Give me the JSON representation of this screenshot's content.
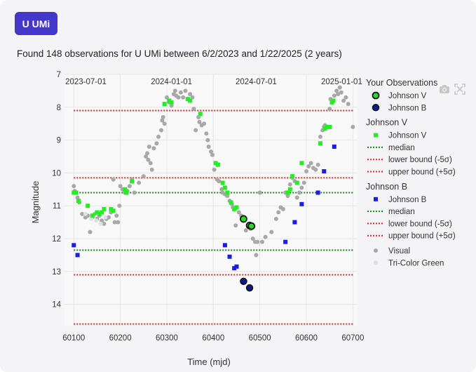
{
  "button": {
    "label": "U UMi"
  },
  "summary": "Found 148 observations for U UMi between 6/2/2023 and 1/22/2025 (2 years)",
  "toolbar": {
    "icons": [
      "camera-icon",
      "autoscale-icon"
    ]
  },
  "chart_data": {
    "type": "scatter",
    "xlabel": "Time (mjd)",
    "ylabel": "Magnitude",
    "xlim": [
      60080,
      60710
    ],
    "ylim": [
      14.65,
      7.0
    ],
    "y_reversed": true,
    "x_ticks": [
      60100,
      60200,
      60300,
      60400,
      60500,
      60600,
      60700
    ],
    "y_ticks": [
      7,
      8,
      9,
      10,
      11,
      12,
      13,
      14
    ],
    "top_date_ticks": [
      {
        "label": "2023-07-01",
        "mjd": 60126
      },
      {
        "label": "2024-01-01",
        "mjd": 60310
      },
      {
        "label": "2024-07-01",
        "mjd": 60492
      },
      {
        "label": "2025-01-01",
        "mjd": 60676
      }
    ],
    "grid": true,
    "legend_position": "right",
    "colors": {
      "visual": "#a8a8a8",
      "tricolor_green": "#e0e0e0",
      "johnson_v": "#22ee22",
      "johnson_b": "#1a1aee",
      "median": "#118811",
      "bound": "#ee2222",
      "user_v": "#22dd22",
      "user_b": "#0a1a8a"
    },
    "lines": {
      "johnson_v": {
        "median": 10.6,
        "lower": 8.1,
        "upper": 10.15
      },
      "johnson_b": {
        "median": 12.35,
        "lower": 13.1,
        "upper": 14.6
      }
    },
    "legend": {
      "groups": [
        {
          "title": "Your Observations",
          "items": [
            {
              "label": "Johnson V",
              "kind": "user-v"
            },
            {
              "label": "Johnson B",
              "kind": "user-b"
            }
          ]
        },
        {
          "title": "Johnson V",
          "items": [
            {
              "label": "Johnson V",
              "kind": "square-v"
            },
            {
              "label": "median",
              "kind": "median"
            },
            {
              "label": "lower bound (-5σ)",
              "kind": "bound"
            },
            {
              "label": "upper bound (+5σ)",
              "kind": "bound"
            }
          ]
        },
        {
          "title": "Johnson B",
          "items": [
            {
              "label": "Johnson B",
              "kind": "square-b"
            },
            {
              "label": "median",
              "kind": "median"
            },
            {
              "label": "lower bound (-5σ)",
              "kind": "bound"
            },
            {
              "label": "upper bound (+5σ)",
              "kind": "bound"
            }
          ]
        },
        {
          "title": "",
          "items": [
            {
              "label": "Visual",
              "kind": "visual"
            },
            {
              "label": "Tri-Color Green",
              "kind": "tricolor"
            }
          ]
        }
      ]
    },
    "series": [
      {
        "name": "Visual",
        "kind": "visual",
        "points": [
          [
            60100,
            10.4
          ],
          [
            60102,
            10.55
          ],
          [
            60108,
            10.75
          ],
          [
            60112,
            10.9
          ],
          [
            60118,
            11.25
          ],
          [
            60125,
            11.35
          ],
          [
            60130,
            11.3
          ],
          [
            60135,
            11.8
          ],
          [
            60140,
            11.35
          ],
          [
            60145,
            11.25
          ],
          [
            60150,
            11.4
          ],
          [
            60155,
            11.3
          ],
          [
            60160,
            11.45
          ],
          [
            60165,
            11.55
          ],
          [
            60170,
            11.4
          ],
          [
            60175,
            11.35
          ],
          [
            60180,
            11.2
          ],
          [
            60185,
            10.2
          ],
          [
            60188,
            11.5
          ],
          [
            60192,
            11.3
          ],
          [
            60195,
            11.5
          ],
          [
            60198,
            11.0
          ],
          [
            60200,
            10.4
          ],
          [
            60205,
            10.5
          ],
          [
            60210,
            10.6
          ],
          [
            60215,
            10.55
          ],
          [
            60220,
            10.4
          ],
          [
            60225,
            10.2
          ],
          [
            60230,
            10.6
          ],
          [
            60240,
            10.3
          ],
          [
            60250,
            10.1
          ],
          [
            60255,
            9.5
          ],
          [
            60258,
            9.4
          ],
          [
            60260,
            9.6
          ],
          [
            60262,
            9.2
          ],
          [
            60265,
            9.7
          ],
          [
            60268,
            9.9
          ],
          [
            60272,
            9.25
          ],
          [
            60278,
            9.1
          ],
          [
            60282,
            8.9
          ],
          [
            60288,
            8.7
          ],
          [
            60290,
            8.4
          ],
          [
            60292,
            8.3
          ],
          [
            60295,
            8.5
          ],
          [
            60300,
            7.7
          ],
          [
            60305,
            7.85
          ],
          [
            60310,
            7.95
          ],
          [
            60315,
            7.6
          ],
          [
            60318,
            7.5
          ],
          [
            60320,
            7.65
          ],
          [
            60325,
            7.7
          ],
          [
            60330,
            7.55
          ],
          [
            60335,
            7.7
          ],
          [
            60340,
            7.5
          ],
          [
            60345,
            7.75
          ],
          [
            60350,
            7.6
          ],
          [
            60355,
            7.7
          ],
          [
            60358,
            8.05
          ],
          [
            60362,
            8.7
          ],
          [
            60368,
            8.3
          ],
          [
            60370,
            8.45
          ],
          [
            60375,
            8.55
          ],
          [
            60380,
            8.5
          ],
          [
            60385,
            8.8
          ],
          [
            60388,
            9.0
          ],
          [
            60390,
            9.2
          ],
          [
            60395,
            9.35
          ],
          [
            60398,
            9.45
          ],
          [
            60402,
            9.9
          ],
          [
            60408,
            10.2
          ],
          [
            60412,
            10.25
          ],
          [
            60418,
            10.5
          ],
          [
            60420,
            10.6
          ],
          [
            60425,
            10.65
          ],
          [
            60430,
            10.7
          ],
          [
            60435,
            10.85
          ],
          [
            60440,
            10.95
          ],
          [
            60442,
            11.05
          ],
          [
            60448,
            11.6
          ],
          [
            60455,
            11.2
          ],
          [
            60460,
            11.3
          ],
          [
            60465,
            11.45
          ],
          [
            60470,
            11.75
          ],
          [
            60475,
            11.6
          ],
          [
            60480,
            11.7
          ],
          [
            60485,
            12.0
          ],
          [
            60490,
            12.1
          ],
          [
            60492,
            12.5
          ],
          [
            60495,
            12.1
          ],
          [
            60500,
            10.6
          ],
          [
            60505,
            12.1
          ],
          [
            60512,
            11.95
          ],
          [
            60525,
            11.8
          ],
          [
            60535,
            11.4
          ],
          [
            60540,
            11.2
          ],
          [
            60545,
            11.05
          ],
          [
            60550,
            11.1
          ],
          [
            60555,
            10.6
          ],
          [
            60560,
            10.7
          ],
          [
            60565,
            10.35
          ],
          [
            60570,
            10.15
          ],
          [
            60575,
            10.25
          ],
          [
            60580,
            10.75
          ],
          [
            60585,
            10.6
          ],
          [
            60590,
            10.45
          ],
          [
            60595,
            10.3
          ],
          [
            60600,
            9.95
          ],
          [
            60605,
            9.8
          ],
          [
            60610,
            9.7
          ],
          [
            60615,
            9.85
          ],
          [
            60620,
            9.9
          ],
          [
            60625,
            9.75
          ],
          [
            60630,
            8.9
          ],
          [
            60635,
            8.7
          ],
          [
            60638,
            8.6
          ],
          [
            60640,
            8.55
          ],
          [
            60645,
            8.6
          ],
          [
            60650,
            8.05
          ],
          [
            60652,
            7.75
          ],
          [
            60655,
            7.85
          ],
          [
            60660,
            7.65
          ],
          [
            60665,
            7.5
          ],
          [
            60668,
            7.6
          ],
          [
            60672,
            7.4
          ],
          [
            60675,
            7.55
          ],
          [
            60680,
            7.8
          ],
          [
            60685,
            7.7
          ],
          [
            60690,
            7.9
          ],
          [
            60700,
            8.6
          ]
        ]
      },
      {
        "name": "Tri-Color Green",
        "kind": "tricolor",
        "points": [
          [
            60125,
            11.25
          ],
          [
            60138,
            11.4
          ],
          [
            60148,
            11.45
          ],
          [
            60158,
            11.55
          ],
          [
            60168,
            11.35
          ]
        ]
      },
      {
        "name": "Johnson V",
        "kind": "square-v",
        "points": [
          [
            60100,
            10.6
          ],
          [
            60105,
            10.6
          ],
          [
            60110,
            10.85
          ],
          [
            60130,
            11.0
          ],
          [
            60140,
            11.3
          ],
          [
            60150,
            11.2
          ],
          [
            60155,
            11.25
          ],
          [
            60160,
            11.2
          ],
          [
            60165,
            11.1
          ],
          [
            60180,
            11.1
          ],
          [
            60185,
            11.15
          ],
          [
            60210,
            10.5
          ],
          [
            60213,
            10.6
          ],
          [
            60225,
            10.25
          ],
          [
            60295,
            7.9
          ],
          [
            60305,
            7.8
          ],
          [
            60310,
            7.85
          ],
          [
            60345,
            7.75
          ],
          [
            60350,
            7.8
          ],
          [
            60372,
            8.2
          ],
          [
            60405,
            9.7
          ],
          [
            60410,
            9.75
          ],
          [
            60420,
            10.3
          ],
          [
            60425,
            10.45
          ],
          [
            60430,
            10.6
          ],
          [
            60438,
            10.9
          ],
          [
            60445,
            11.1
          ],
          [
            60450,
            11.05
          ],
          [
            60465,
            11.4
          ],
          [
            60475,
            11.6
          ],
          [
            60560,
            10.6
          ],
          [
            60565,
            10.5
          ],
          [
            60570,
            10.1
          ],
          [
            60580,
            10.3
          ],
          [
            60590,
            9.7
          ],
          [
            60630,
            9.1
          ],
          [
            60640,
            8.65
          ],
          [
            60645,
            8.6
          ],
          [
            60650,
            8.6
          ],
          [
            60655,
            7.85
          ],
          [
            60658,
            7.8
          ]
        ]
      },
      {
        "name": "Johnson B",
        "kind": "square-b",
        "points": [
          [
            60100,
            12.2
          ],
          [
            60108,
            12.5
          ],
          [
            60425,
            12.2
          ],
          [
            60435,
            12.55
          ],
          [
            60445,
            12.9
          ],
          [
            60450,
            12.85
          ],
          [
            60555,
            12.1
          ],
          [
            60575,
            11.5
          ],
          [
            60590,
            10.95
          ],
          [
            60625,
            10.6
          ],
          [
            60638,
            9.95
          ],
          [
            60660,
            9.2
          ]
        ]
      },
      {
        "name": "Your Observations — Johnson V",
        "kind": "user-v",
        "points": [
          [
            60465,
            11.4
          ],
          [
            60478,
            11.6
          ],
          [
            60482,
            11.62
          ]
        ]
      },
      {
        "name": "Your Observations — Johnson B",
        "kind": "user-b",
        "points": [
          [
            60465,
            13.3
          ],
          [
            60478,
            13.5
          ]
        ]
      }
    ]
  }
}
